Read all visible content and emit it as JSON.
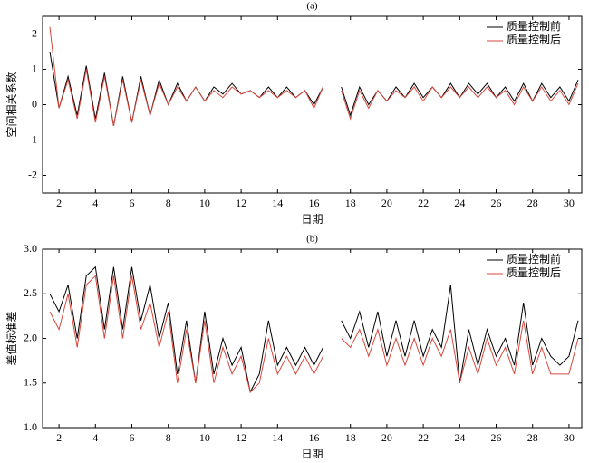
{
  "chart_data": [
    {
      "type": "line",
      "title": "(a)",
      "x_label": "日期",
      "y_label": "空间相关系数",
      "x": [
        1.5,
        2.0,
        2.5,
        3.0,
        3.5,
        4.0,
        4.5,
        5.0,
        5.5,
        6.0,
        6.5,
        7.0,
        7.5,
        8.0,
        8.5,
        9.0,
        9.5,
        10.0,
        10.5,
        11.0,
        11.5,
        12.0,
        12.5,
        13.0,
        13.5,
        14.0,
        14.5,
        15.0,
        15.5,
        16.0,
        16.5,
        17.0,
        17.5,
        18.0,
        18.5,
        19.0,
        19.5,
        20.0,
        20.5,
        21.0,
        21.5,
        22.0,
        22.5,
        23.0,
        23.5,
        24.0,
        24.5,
        25.0,
        25.5,
        26.0,
        26.5,
        27.0,
        27.5,
        28.0,
        28.5,
        29.0,
        29.5,
        30.0,
        30.5
      ],
      "series": [
        {
          "name": "质量控制前",
          "color": "#000000",
          "values": [
            1.5,
            -0.1,
            0.8,
            -0.3,
            1.1,
            -0.4,
            0.9,
            -0.6,
            0.8,
            -0.5,
            0.8,
            -0.3,
            0.7,
            0.0,
            0.6,
            0.1,
            0.5,
            0.1,
            0.5,
            0.3,
            0.6,
            0.3,
            0.4,
            0.2,
            0.5,
            0.2,
            0.5,
            0.2,
            0.4,
            0.0,
            0.5,
            null,
            0.5,
            -0.3,
            0.5,
            0.0,
            0.4,
            0.1,
            0.5,
            0.2,
            0.6,
            0.2,
            0.5,
            0.2,
            0.6,
            0.2,
            0.6,
            0.3,
            0.6,
            0.2,
            0.5,
            0.1,
            0.6,
            0.1,
            0.6,
            0.2,
            0.5,
            0.1,
            0.7
          ]
        },
        {
          "name": "质量控制后",
          "color": "#d9473c",
          "values": [
            2.2,
            -0.1,
            0.7,
            -0.4,
            1.0,
            -0.5,
            0.8,
            -0.6,
            0.7,
            -0.5,
            0.7,
            -0.3,
            0.6,
            0.0,
            0.5,
            0.1,
            0.5,
            0.1,
            0.4,
            0.2,
            0.5,
            0.3,
            0.4,
            0.2,
            0.4,
            0.2,
            0.4,
            0.2,
            0.4,
            -0.1,
            0.5,
            null,
            0.4,
            -0.4,
            0.4,
            -0.1,
            0.4,
            0.1,
            0.4,
            0.2,
            0.5,
            0.1,
            0.5,
            0.2,
            0.5,
            0.2,
            0.5,
            0.2,
            0.5,
            0.2,
            0.4,
            0.0,
            0.5,
            0.1,
            0.5,
            0.1,
            0.4,
            0.0,
            0.6
          ]
        }
      ],
      "xlim": [
        1.1,
        30.7
      ],
      "xticks": [
        2,
        4,
        6,
        8,
        10,
        12,
        14,
        16,
        18,
        20,
        22,
        24,
        26,
        28,
        30
      ],
      "ylim": [
        -2.5,
        2.5
      ],
      "yticks": [
        -2,
        -1,
        0,
        1,
        2
      ],
      "legend": "upper right"
    },
    {
      "type": "line",
      "title": "(b)",
      "x_label": "日期",
      "y_label": "差值标准差",
      "x": [
        1.5,
        2.0,
        2.5,
        3.0,
        3.5,
        4.0,
        4.5,
        5.0,
        5.5,
        6.0,
        6.5,
        7.0,
        7.5,
        8.0,
        8.5,
        9.0,
        9.5,
        10.0,
        10.5,
        11.0,
        11.5,
        12.0,
        12.5,
        13.0,
        13.5,
        14.0,
        14.5,
        15.0,
        15.5,
        16.0,
        16.5,
        17.0,
        17.5,
        18.0,
        18.5,
        19.0,
        19.5,
        20.0,
        20.5,
        21.0,
        21.5,
        22.0,
        22.5,
        23.0,
        23.5,
        24.0,
        24.5,
        25.0,
        25.5,
        26.0,
        26.5,
        27.0,
        27.5,
        28.0,
        28.5,
        29.0,
        29.5,
        30.0,
        30.5
      ],
      "series": [
        {
          "name": "质量控制前",
          "color": "#000000",
          "values": [
            2.5,
            2.3,
            2.6,
            2.0,
            2.7,
            2.8,
            2.1,
            2.8,
            2.1,
            2.8,
            2.2,
            2.6,
            2.0,
            2.4,
            1.6,
            2.2,
            1.5,
            2.3,
            1.6,
            2.0,
            1.7,
            1.9,
            1.4,
            1.6,
            2.2,
            1.7,
            1.9,
            1.7,
            1.9,
            1.7,
            1.9,
            null,
            2.2,
            2.0,
            2.3,
            1.9,
            2.3,
            1.8,
            2.2,
            1.8,
            2.2,
            1.8,
            2.1,
            1.9,
            2.6,
            1.5,
            2.1,
            1.7,
            2.1,
            1.8,
            2.0,
            1.7,
            2.4,
            1.7,
            2.0,
            1.8,
            1.7,
            1.8,
            2.2
          ]
        },
        {
          "name": "质量控制后",
          "color": "#d9473c",
          "values": [
            2.3,
            2.1,
            2.5,
            1.9,
            2.6,
            2.7,
            2.0,
            2.7,
            2.0,
            2.7,
            2.1,
            2.4,
            1.9,
            2.3,
            1.5,
            2.1,
            1.5,
            2.2,
            1.5,
            1.9,
            1.6,
            1.8,
            1.4,
            1.5,
            2.0,
            1.6,
            1.8,
            1.6,
            1.8,
            1.6,
            1.8,
            null,
            2.0,
            1.9,
            2.1,
            1.8,
            2.1,
            1.7,
            2.0,
            1.7,
            2.0,
            1.7,
            2.0,
            1.8,
            2.1,
            1.5,
            1.9,
            1.6,
            2.0,
            1.7,
            1.9,
            1.6,
            2.2,
            1.6,
            1.9,
            1.6,
            1.6,
            1.6,
            2.0
          ]
        }
      ],
      "xlim": [
        1.1,
        30.7
      ],
      "xticks": [
        2,
        4,
        6,
        8,
        10,
        12,
        14,
        16,
        18,
        20,
        22,
        24,
        26,
        28,
        30
      ],
      "ylim": [
        1.0,
        3.0
      ],
      "yticks": [
        {
          "value": 1.0,
          "label": "1.0"
        },
        1.5,
        {
          "value": 2.0,
          "label": "2.0"
        },
        2.5,
        {
          "value": 3.0,
          "label": "3.0"
        }
      ],
      "legend": "upper right"
    }
  ]
}
